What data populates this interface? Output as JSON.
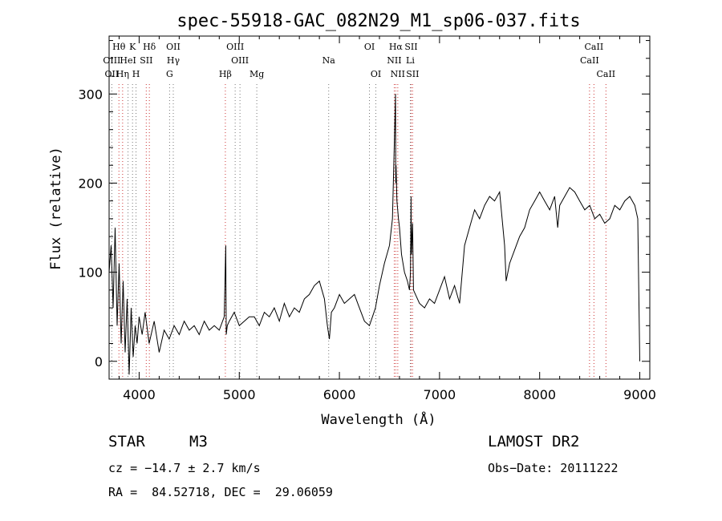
{
  "chart_data": {
    "type": "line",
    "title": "spec-55918-GAC_082N29_M1_sp06-037.fits",
    "xlabel": "Wavelength (Å)",
    "ylabel": "Flux (relative)",
    "xlim": [
      3700,
      9100
    ],
    "ylim": [
      -20,
      365
    ],
    "xticks": [
      4000,
      5000,
      6000,
      7000,
      8000,
      9000
    ],
    "yticks": [
      0,
      100,
      200,
      300
    ],
    "grid": false,
    "series": [
      {
        "x": [
          3700,
          3720,
          3740,
          3760,
          3780,
          3800,
          3820,
          3840,
          3860,
          3880,
          3900,
          3920,
          3940,
          3960,
          3980,
          4000,
          4030,
          4060,
          4100,
          4150,
          4200,
          4250,
          4300,
          4350,
          4400,
          4450,
          4500,
          4550,
          4600,
          4650,
          4700,
          4750,
          4800,
          4850,
          4865,
          4870,
          4880,
          4900,
          4950,
          5000,
          5050,
          5100,
          5150,
          5200,
          5250,
          5300,
          5350,
          5400,
          5450,
          5500,
          5550,
          5600,
          5650,
          5700,
          5750,
          5800,
          5850,
          5880,
          5900,
          5920,
          5950,
          6000,
          6050,
          6100,
          6150,
          6200,
          6250,
          6300,
          6330,
          6360,
          6400,
          6450,
          6500,
          6530,
          6550,
          6560,
          6563,
          6566,
          6575,
          6590,
          6600,
          6620,
          6650,
          6680,
          6700,
          6710,
          6716,
          6720,
          6731,
          6740,
          6760,
          6800,
          6850,
          6900,
          6950,
          7000,
          7050,
          7100,
          7150,
          7200,
          7250,
          7300,
          7350,
          7400,
          7450,
          7500,
          7550,
          7600,
          7650,
          7665,
          7700,
          7750,
          7800,
          7850,
          7900,
          7950,
          8000,
          8050,
          8100,
          8150,
          8180,
          8200,
          8250,
          8300,
          8350,
          8400,
          8450,
          8500,
          8550,
          8600,
          8650,
          8700,
          8750,
          8800,
          8850,
          8900,
          8950,
          8980,
          9000
        ],
        "y": [
          100,
          130,
          60,
          150,
          40,
          110,
          20,
          90,
          10,
          70,
          -15,
          60,
          5,
          40,
          20,
          50,
          30,
          55,
          20,
          45,
          10,
          35,
          25,
          40,
          30,
          45,
          35,
          40,
          30,
          45,
          35,
          40,
          35,
          50,
          130,
          30,
          40,
          45,
          55,
          40,
          45,
          50,
          50,
          40,
          55,
          50,
          60,
          45,
          65,
          50,
          60,
          55,
          70,
          75,
          85,
          90,
          70,
          40,
          25,
          55,
          60,
          75,
          65,
          70,
          75,
          60,
          45,
          40,
          50,
          60,
          85,
          110,
          130,
          160,
          250,
          300,
          200,
          220,
          180,
          160,
          150,
          120,
          100,
          90,
          80,
          100,
          185,
          120,
          155,
          80,
          75,
          65,
          60,
          70,
          65,
          80,
          95,
          70,
          85,
          65,
          130,
          150,
          170,
          160,
          175,
          185,
          180,
          190,
          130,
          90,
          110,
          125,
          140,
          150,
          170,
          180,
          190,
          180,
          170,
          185,
          150,
          175,
          185,
          195,
          190,
          180,
          170,
          175,
          160,
          165,
          155,
          160,
          175,
          170,
          180,
          185,
          175,
          160,
          0
        ]
      }
    ],
    "lines": [
      {
        "label": "Hθ",
        "x": 3798,
        "row": 0
      },
      {
        "label": "K",
        "x": 3934,
        "row": 0
      },
      {
        "label": "Hδ",
        "x": 4102,
        "row": 0
      },
      {
        "label": "OII",
        "x": 4341,
        "row": 0
      },
      {
        "label": "OIII",
        "x": 4959,
        "row": 0
      },
      {
        "label": "OI",
        "x": 6300,
        "row": 0
      },
      {
        "label": "Hα",
        "x": 6563,
        "row": 0
      },
      {
        "label": "SII",
        "x": 6716,
        "row": 0
      },
      {
        "label": "CaII",
        "x": 8542,
        "row": 0
      },
      {
        "label": "OIII",
        "x": 3727,
        "row": 1
      },
      {
        "label": "HeI",
        "x": 3889,
        "row": 1
      },
      {
        "label": "SII",
        "x": 4071,
        "row": 1
      },
      {
        "label": "Hγ",
        "x": 4341,
        "row": 1
      },
      {
        "label": "OIII",
        "x": 5007,
        "row": 1
      },
      {
        "label": "Na",
        "x": 5893,
        "row": 1
      },
      {
        "label": "NII",
        "x": 6548,
        "row": 1
      },
      {
        "label": "Li",
        "x": 6708,
        "row": 1
      },
      {
        "label": "CaII",
        "x": 8498,
        "row": 1
      },
      {
        "label": "OII",
        "x": 3727,
        "row": 2
      },
      {
        "label": "Hη",
        "x": 3835,
        "row": 2
      },
      {
        "label": "H",
        "x": 3969,
        "row": 2
      },
      {
        "label": "G",
        "x": 4304,
        "row": 2
      },
      {
        "label": "Hβ",
        "x": 4861,
        "row": 2
      },
      {
        "label": "Mg",
        "x": 5175,
        "row": 2
      },
      {
        "label": "OI",
        "x": 6364,
        "row": 2
      },
      {
        "label": "NII",
        "x": 6583,
        "row": 2
      },
      {
        "label": "SII",
        "x": 6731,
        "row": 2
      },
      {
        "label": "CaII",
        "x": 8662,
        "row": 2
      }
    ]
  },
  "info": {
    "object_class": "STAR",
    "subclass": "M3",
    "survey": "LAMOST DR2",
    "cz": "cz = −14.7 ± 2.7 km/s",
    "obs_date": "Obs−Date: 20111222",
    "coords": "RA =  84.52718, DEC =  29.06059"
  }
}
